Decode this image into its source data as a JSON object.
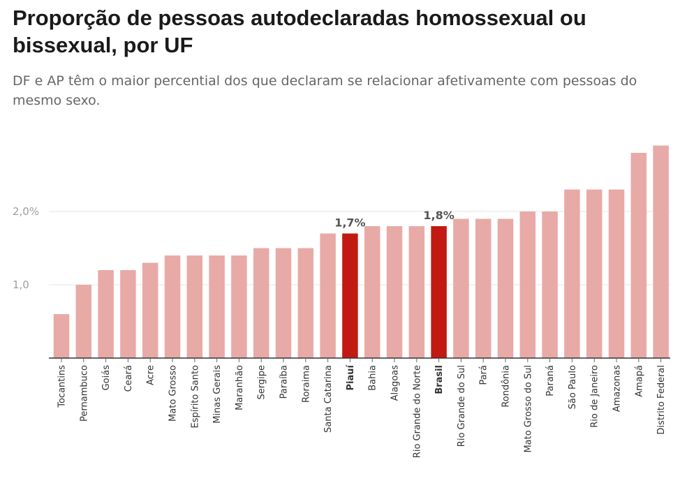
{
  "title": "Proporção de pessoas autodeclaradas homossexual ou bissexual, por UF",
  "subtitle": "DF e AP têm o maior percential dos que declaram se relacionar afetivamente com pessoas do mesmo sexo.",
  "colors": {
    "bar": "#e8aaa7",
    "highlight": "#c11a12",
    "grid": "#e6e6e6",
    "axis": "#333333"
  },
  "chart_data": {
    "type": "bar",
    "categories": [
      "Tocantins",
      "Pernambuco",
      "Goiás",
      "Ceará",
      "Acre",
      "Mato Grosso",
      "Espírito Santo",
      "Minas Gerais",
      "Maranhão",
      "Sergipe",
      "Paraíba",
      "Roraima",
      "Santa Catarina",
      "Piauí",
      "Bahia",
      "Alagoas",
      "Rio Grande do Norte",
      "Brasil",
      "Rio Grande do Sul",
      "Pará",
      "Rondônia",
      "Mato Grosso do Sul",
      "Paraná",
      "São Paulo",
      "Rio de Janeiro",
      "Amazonas",
      "Amapá",
      "Distrito Federal"
    ],
    "values": [
      0.6,
      1.0,
      1.2,
      1.2,
      1.3,
      1.4,
      1.4,
      1.4,
      1.4,
      1.5,
      1.5,
      1.5,
      1.7,
      1.7,
      1.8,
      1.8,
      1.8,
      1.8,
      1.9,
      1.9,
      1.9,
      2.0,
      2.0,
      2.3,
      2.3,
      2.3,
      2.8,
      2.9
    ],
    "highlighted": [
      "Piauí",
      "Brasil"
    ],
    "data_labels": [
      {
        "category": "Piauí",
        "text": "1,7%"
      },
      {
        "category": "Brasil",
        "text": "1,8%"
      }
    ],
    "y_ticks": [
      {
        "value": 1.0,
        "label": "1,0"
      },
      {
        "value": 2.0,
        "label": "2,0%"
      }
    ],
    "ylim": [
      0,
      3
    ],
    "grid": true,
    "xlabel": "",
    "ylabel": ""
  }
}
